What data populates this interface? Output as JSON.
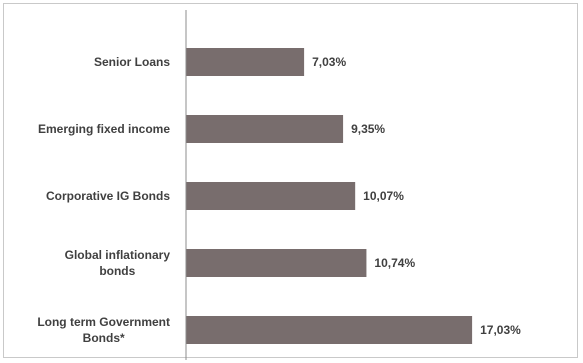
{
  "chart_data": {
    "type": "bar",
    "orientation": "horizontal",
    "categories": [
      [
        "Senior Loans"
      ],
      [
        "Emerging fixed income"
      ],
      [
        "Corporative IG Bonds"
      ],
      [
        "Global inflationary",
        "bonds"
      ],
      [
        "Long term Government",
        "Bonds*"
      ]
    ],
    "values": [
      7.03,
      9.35,
      10.07,
      10.74,
      17.03
    ],
    "value_labels": [
      "7,03%",
      "9,35%",
      "10,07%",
      "10,74%",
      "17,03%"
    ],
    "title": "",
    "xlabel": "",
    "ylabel": "",
    "xlim": [
      0,
      20
    ],
    "grid": false,
    "legend": "none",
    "bar_color": "#786d6d",
    "axis_color": "#8c8c8c",
    "text_color": "#404040"
  }
}
